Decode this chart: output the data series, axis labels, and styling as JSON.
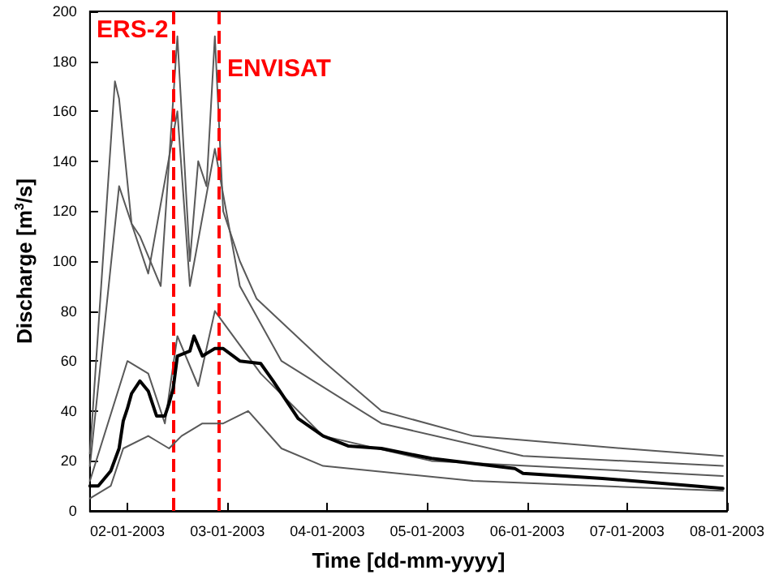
{
  "chart_data": {
    "type": "line",
    "xlabel": "Time [dd-mm-yyyy]",
    "ylabel": "Discharge [m$^{3}$/s]",
    "xlim": [
      "2003-01-01T15:00",
      "2003-01-08T00:00"
    ],
    "xticks": [
      {
        "value": "2003-01-02",
        "label": "02-01-2003"
      },
      {
        "value": "2003-01-03",
        "label": "03-01-2003"
      },
      {
        "value": "2003-01-04",
        "label": "04-01-2003"
      },
      {
        "value": "2003-01-05",
        "label": "05-01-2003"
      },
      {
        "value": "2003-01-06",
        "label": "06-01-2003"
      },
      {
        "value": "2003-01-07",
        "label": "07-01-2003"
      },
      {
        "value": "2003-01-08",
        "label": "08-01-2003"
      }
    ],
    "ylim": [
      0,
      200
    ],
    "yticks": [
      0,
      20,
      40,
      60,
      80,
      100,
      120,
      140,
      160,
      180,
      200
    ],
    "grid": false,
    "marker": "none",
    "line_style": "solid",
    "series": [
      {
        "color": "#595959",
        "x": [
          "2003-01-01T15:00",
          "2003-01-01T21:00",
          "2003-01-01T22:00",
          "2003-01-02T01:00",
          "2003-01-02T03:00",
          "2003-01-02T08:00",
          "2003-01-02T12:00",
          "2003-01-02T15:00",
          "2003-01-02T17:00",
          "2003-01-02T19:00",
          "2003-01-02T21:00",
          "2003-01-02T23:00",
          "2003-01-03T03:00",
          "2003-01-03T07:00",
          "2003-01-03T23:00",
          "2003-01-04T13:00",
          "2003-01-05T11:00",
          "2003-01-06T23:00",
          "2003-01-07T23:00"
        ],
        "values": [
          23,
          172,
          165,
          115,
          110,
          90,
          190,
          100,
          140,
          130,
          190,
          120,
          100,
          85,
          60,
          40,
          30,
          25,
          22
        ]
      },
      {
        "color": "#595959",
        "x": [
          "2003-01-01T15:00",
          "2003-01-01T22:00",
          "2003-01-02T05:00",
          "2003-01-02T12:00",
          "2003-01-02T15:00",
          "2003-01-02T21:00",
          "2003-01-03T03:00",
          "2003-01-03T13:00",
          "2003-01-04T13:00",
          "2003-01-05T23:00",
          "2003-01-07T23:00"
        ],
        "values": [
          18,
          130,
          95,
          160,
          90,
          145,
          90,
          60,
          35,
          22,
          18
        ]
      },
      {
        "color": "#595959",
        "x": [
          "2003-01-01T15:00",
          "2003-01-02T00:00",
          "2003-01-02T05:00",
          "2003-01-02T09:00",
          "2003-01-02T12:00",
          "2003-01-02T17:00",
          "2003-01-02T21:00",
          "2003-01-03T08:00",
          "2003-01-03T23:00",
          "2003-01-05T01:00",
          "2003-01-07T23:00"
        ],
        "values": [
          12,
          60,
          55,
          35,
          70,
          50,
          80,
          55,
          30,
          20,
          14
        ]
      },
      {
        "color": "#595959",
        "x": [
          "2003-01-01T15:00",
          "2003-01-01T20:00",
          "2003-01-01T23:00",
          "2003-01-02T05:00",
          "2003-01-02T07:00",
          "2003-01-02T10:00",
          "2003-01-02T13:00",
          "2003-01-02T18:00",
          "2003-01-02T23:00",
          "2003-01-03T05:00",
          "2003-01-03T13:00",
          "2003-01-03T23:00",
          "2003-01-05T11:00",
          "2003-01-07T23:00"
        ],
        "values": [
          5,
          10,
          25,
          30,
          28,
          25,
          30,
          35,
          35,
          40,
          25,
          18,
          12,
          8
        ]
      },
      {
        "color": "#000000",
        "x": [
          "2003-01-01T15:00",
          "2003-01-01T17:00",
          "2003-01-01T20:00",
          "2003-01-01T22:00",
          "2003-01-01T23:00",
          "2003-01-02T00:00",
          "2003-01-02T01:00",
          "2003-01-02T03:00",
          "2003-01-02T05:00",
          "2003-01-02T07:00",
          "2003-01-02T09:00",
          "2003-01-02T10:00",
          "2003-01-02T11:00",
          "2003-01-02T12:00",
          "2003-01-02T15:00",
          "2003-01-02T16:00",
          "2003-01-02T18:00",
          "2003-01-02T21:00",
          "2003-01-02T23:00",
          "2003-01-03T03:00",
          "2003-01-03T08:00",
          "2003-01-03T11:00",
          "2003-01-03T17:00",
          "2003-01-03T23:00",
          "2003-01-04T05:00",
          "2003-01-04T13:00",
          "2003-01-05T01:00",
          "2003-01-05T11:00",
          "2003-01-05T21:00",
          "2003-01-05T23:00",
          "2003-01-06T18:00",
          "2003-01-07T23:00"
        ],
        "values": [
          10,
          10,
          16,
          25,
          36,
          41,
          47,
          52,
          48,
          38,
          38,
          43,
          49,
          62,
          64,
          70,
          62,
          65,
          65,
          60,
          59,
          52,
          37,
          30,
          26,
          25,
          21,
          19,
          17,
          15,
          13,
          9
        ]
      }
    ],
    "ref_lines": [
      {
        "axis": "x",
        "value": "2003-01-02T11:00",
        "label": "ERS-2",
        "color": "#ff0000",
        "line_style": "dashed"
      },
      {
        "axis": "x",
        "value": "2003-01-02T22:00",
        "label": "ENVISAT",
        "color": "#ff0000",
        "line_style": "dashed"
      }
    ]
  }
}
